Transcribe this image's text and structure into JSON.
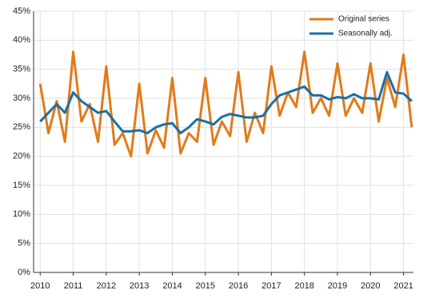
{
  "chart_data": {
    "type": "line",
    "x": [
      2010,
      2010.25,
      2010.5,
      2010.75,
      2011,
      2011.25,
      2011.5,
      2011.75,
      2012,
      2012.25,
      2012.5,
      2012.75,
      2013,
      2013.25,
      2013.5,
      2013.75,
      2014,
      2014.25,
      2014.5,
      2014.75,
      2015,
      2015.25,
      2015.5,
      2015.75,
      2016,
      2016.25,
      2016.5,
      2016.75,
      2017,
      2017.25,
      2017.5,
      2017.75,
      2018,
      2018.25,
      2018.5,
      2018.75,
      2019,
      2019.25,
      2019.5,
      2019.75,
      2020,
      2020.25,
      2020.5,
      2020.75,
      2021,
      2021.25
    ],
    "series": [
      {
        "name": "Original series",
        "color": "#e07b1a",
        "values": [
          32.5,
          24,
          29.5,
          22.5,
          38,
          26,
          29,
          22.5,
          35.5,
          22,
          24,
          20,
          32.5,
          20.5,
          24.5,
          21.5,
          33.5,
          20.5,
          24,
          22.5,
          33.5,
          22,
          26,
          23.5,
          34.5,
          22.5,
          27.5,
          24,
          35.5,
          27,
          31,
          28.5,
          38,
          27.5,
          30,
          27,
          36,
          27,
          30,
          27.5,
          36,
          26,
          33.5,
          28.5,
          37.5,
          25
        ]
      },
      {
        "name": "Seasonally adj.",
        "color": "#1a6fa8",
        "values": [
          26,
          27.5,
          29,
          27.5,
          31,
          29.5,
          28.5,
          27.5,
          27.8,
          26,
          24.3,
          24.3,
          24.5,
          24,
          25,
          25.5,
          25.7,
          24,
          25,
          26.4,
          26,
          25.5,
          26.8,
          27.3,
          27,
          26.7,
          26.7,
          27,
          29,
          30.5,
          31,
          31.5,
          32,
          30.5,
          30.5,
          29.8,
          30.2,
          30,
          30.7,
          30,
          30,
          29.8,
          34.5,
          31,
          30.8,
          29.5
        ]
      }
    ],
    "xlim": [
      2009.8,
      2021.3
    ],
    "xticks": [
      2010,
      2011,
      2012,
      2013,
      2014,
      2015,
      2016,
      2017,
      2018,
      2019,
      2020,
      2021
    ],
    "ylim": [
      0,
      45
    ],
    "yticks": [
      {
        "value": 0,
        "label": "0%"
      },
      {
        "value": 5,
        "label": "5%"
      },
      {
        "value": 10,
        "label": "10%"
      },
      {
        "value": 15,
        "label": "15%"
      },
      {
        "value": 20,
        "label": "20%"
      },
      {
        "value": 25,
        "label": "25%"
      },
      {
        "value": 30,
        "label": "30%"
      },
      {
        "value": 35,
        "label": "35%"
      },
      {
        "value": 40,
        "label": "40%"
      },
      {
        "value": 45,
        "label": "45%"
      }
    ],
    "grid": true,
    "legend": "top-right"
  }
}
